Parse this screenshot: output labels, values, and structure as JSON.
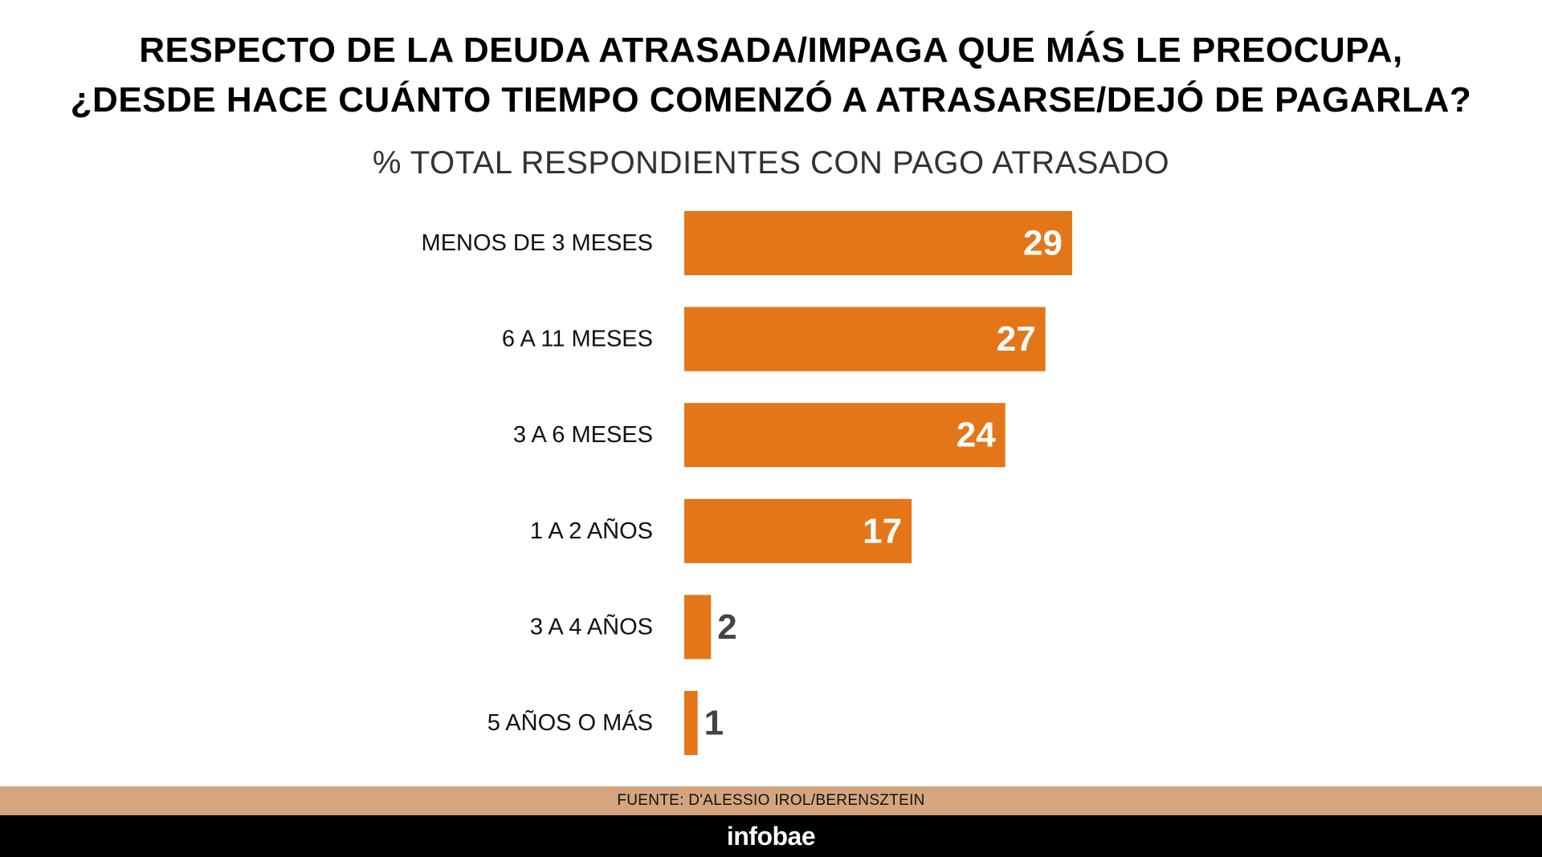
{
  "chart_data": {
    "type": "bar",
    "orientation": "horizontal",
    "title": "RESPECTO DE LA DEUDA ATRASADA/IMPAGA QUE MÁS LE PREOCUPA, ¿DESDE HACE CUÁNTO TIEMPO COMENZÓ A ATRASARSE/DEJÓ DE PAGARLA?",
    "title_lines": [
      "RESPECTO DE LA DEUDA ATRASADA/IMPAGA QUE MÁS LE PREOCUPA,",
      "¿DESDE HACE CUÁNTO TIEMPO COMENZÓ A ATRASARSE/DEJÓ DE PAGARLA?"
    ],
    "subtitle": "% TOTAL RESPONDIENTES CON PAGO ATRASADO",
    "categories": [
      "MENOS DE 3 MESES",
      "6 A 11 MESES",
      "3 A 6 MESES",
      "1 A 2 AÑOS",
      "3 A 4 AÑOS",
      "5 AÑOS O MÁS"
    ],
    "values": [
      29,
      27,
      24,
      17,
      2,
      1
    ],
    "xlim": [
      0,
      29
    ],
    "grid": false,
    "bar_color": "#e4761a",
    "label_inside_color": "#ffffff",
    "label_outside_color": "#444444"
  },
  "footer": {
    "source": "FUENTE: D'ALESSIO IROL/BERENSZTEIN",
    "logo": "infobae",
    "source_band_color": "#d4a57e",
    "logo_band_color": "#000000"
  }
}
